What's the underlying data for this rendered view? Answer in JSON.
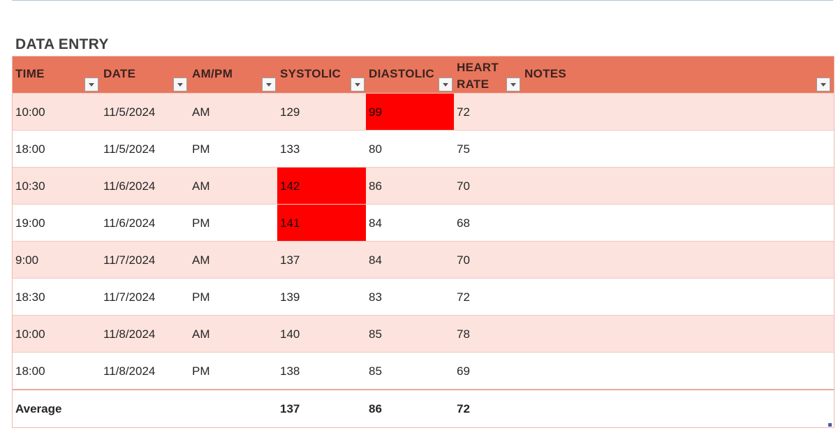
{
  "sheet": {
    "title": "DATA ENTRY"
  },
  "table": {
    "columns": [
      {
        "key": "time",
        "label": "TIME"
      },
      {
        "key": "date",
        "label": "DATE"
      },
      {
        "key": "ampm",
        "label": "AM/PM"
      },
      {
        "key": "systolic",
        "label": "SYSTOLIC"
      },
      {
        "key": "diastolic",
        "label": "DIASTOLIC"
      },
      {
        "key": "heart_rate",
        "label_line1": "HEART",
        "label_line2": "RATE"
      },
      {
        "key": "notes",
        "label": "NOTES"
      }
    ],
    "rows": [
      {
        "time": "10:00",
        "date": "11/5/2024",
        "ampm": "AM",
        "systolic": "129",
        "diastolic": "99",
        "heart_rate": "72",
        "notes": ""
      },
      {
        "time": "18:00",
        "date": "11/5/2024",
        "ampm": "PM",
        "systolic": "133",
        "diastolic": "80",
        "heart_rate": "75",
        "notes": ""
      },
      {
        "time": "10:30",
        "date": "11/6/2024",
        "ampm": "AM",
        "systolic": "142",
        "diastolic": "86",
        "heart_rate": "70",
        "notes": ""
      },
      {
        "time": "19:00",
        "date": "11/6/2024",
        "ampm": "PM",
        "systolic": "141",
        "diastolic": "84",
        "heart_rate": "68",
        "notes": ""
      },
      {
        "time": "9:00",
        "date": "11/7/2024",
        "ampm": "AM",
        "systolic": "137",
        "diastolic": "84",
        "heart_rate": "70",
        "notes": ""
      },
      {
        "time": "18:30",
        "date": "11/7/2024",
        "ampm": "PM",
        "systolic": "139",
        "diastolic": "83",
        "heart_rate": "72",
        "notes": ""
      },
      {
        "time": "10:00",
        "date": "11/8/2024",
        "ampm": "AM",
        "systolic": "140",
        "diastolic": "85",
        "heart_rate": "78",
        "notes": ""
      },
      {
        "time": "18:00",
        "date": "11/8/2024",
        "ampm": "PM",
        "systolic": "138",
        "diastolic": "85",
        "heart_rate": "69",
        "notes": ""
      }
    ],
    "totals": {
      "label": "Average",
      "systolic": "137",
      "diastolic": "86",
      "heart_rate": "72"
    }
  },
  "colors": {
    "header_bg": "#e8765c",
    "band_bg": "#fce3de",
    "flag_bg": "#ff0000"
  },
  "icons": {
    "filter": "filter-dropdown-icon"
  }
}
